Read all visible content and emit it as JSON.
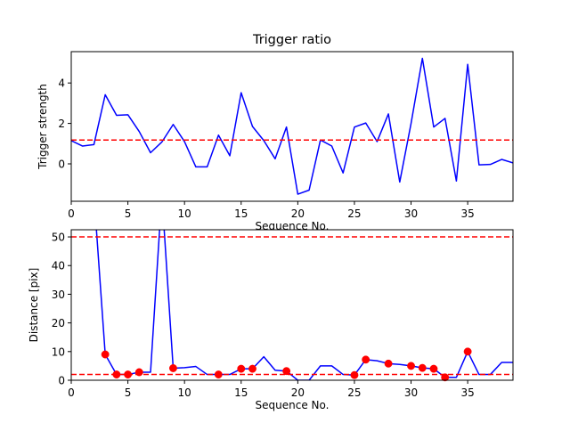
{
  "chart_data": [
    {
      "type": "line",
      "title": "Trigger ratio",
      "xlabel": "Sequence No.",
      "ylabel": "Trigger strength",
      "xlim": [
        0,
        39
      ],
      "ylim": [
        -1.85,
        5.55
      ],
      "xticks": [
        0,
        5,
        10,
        15,
        20,
        25,
        30,
        35
      ],
      "yticks": [
        0,
        2,
        4
      ],
      "grid": false,
      "line_color": "#0000ff",
      "threshold_color": "#ff0000",
      "thresholds": [
        1.18
      ],
      "series": [
        {
          "x": [
            0,
            1,
            2,
            3,
            4,
            5,
            6,
            7,
            8,
            9,
            10,
            11,
            12,
            13,
            14,
            15,
            16,
            17,
            18,
            19,
            20,
            21,
            22,
            23,
            24,
            25,
            26,
            27,
            28,
            29,
            30,
            31,
            32,
            33,
            34,
            35,
            36,
            37,
            38,
            39
          ],
          "values": [
            1.15,
            0.88,
            0.95,
            3.42,
            2.4,
            2.43,
            1.6,
            0.55,
            1.08,
            1.95,
            1.1,
            -0.15,
            -0.15,
            1.42,
            0.4,
            3.52,
            1.85,
            1.15,
            0.25,
            1.82,
            -1.5,
            -1.3,
            1.18,
            0.88,
            -0.45,
            1.82,
            2.02,
            1.1,
            2.47,
            -0.9,
            2.0,
            5.22,
            1.82,
            2.25,
            -0.85,
            4.92,
            -0.05,
            -0.03,
            0.22,
            0.05
          ]
        }
      ]
    },
    {
      "type": "line",
      "title": "",
      "xlabel": "Sequence No.",
      "ylabel": "Distance [pix]",
      "xlim": [
        0,
        39
      ],
      "ylim": [
        0,
        52.5
      ],
      "xticks": [
        0,
        5,
        10,
        15,
        20,
        25,
        30,
        35
      ],
      "yticks": [
        0,
        10,
        20,
        30,
        40,
        50
      ],
      "grid": false,
      "line_color": "#0000ff",
      "marker_color": "#ff0000",
      "threshold_color": "#ff0000",
      "thresholds": [
        50,
        2
      ],
      "series": [
        {
          "x": [
            0,
            1,
            2,
            3,
            4,
            5,
            6,
            7,
            8,
            9,
            10,
            11,
            12,
            13,
            14,
            15,
            16,
            17,
            18,
            19,
            20,
            21,
            22,
            23,
            24,
            25,
            26,
            27,
            28,
            29,
            30,
            31,
            32,
            33,
            34,
            35,
            36,
            37,
            38,
            39
          ],
          "values": [
            null,
            null,
            null,
            9.0,
            2.0,
            2.0,
            2.8,
            2.8,
            null,
            4.2,
            4.4,
            4.8,
            2.0,
            2.0,
            2.0,
            4.0,
            4.0,
            8.2,
            3.5,
            3.2,
            0.0,
            0.0,
            5.0,
            5.0,
            2.0,
            1.8,
            7.2,
            6.8,
            5.8,
            5.5,
            5.0,
            4.3,
            4.0,
            1.0,
            1.0,
            10.0,
            2.0,
            2.0,
            6.2,
            6.2
          ]
        }
      ],
      "markers": {
        "x": [
          3,
          4,
          5,
          6,
          9,
          13,
          15,
          16,
          19,
          25,
          26,
          28,
          30,
          31,
          32,
          33,
          35
        ],
        "values": [
          9.0,
          2.0,
          2.0,
          2.8,
          4.2,
          2.0,
          4.0,
          4.0,
          3.2,
          1.8,
          7.2,
          5.8,
          5.0,
          4.3,
          4.0,
          1.0,
          10.0
        ]
      }
    }
  ]
}
